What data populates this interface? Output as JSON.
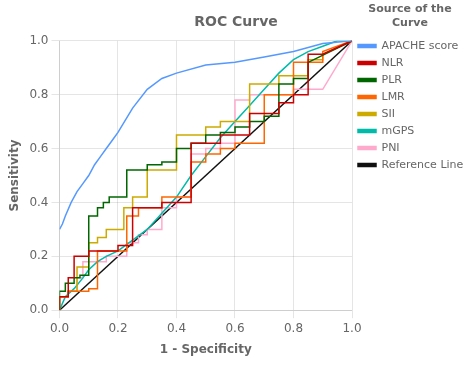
{
  "chart_data": {
    "type": "line",
    "title": "ROC Curve",
    "x_label": "1 - Specificity",
    "y_label": "Sensitivity",
    "legend_title": "Source of the\nCurve",
    "legend": "right",
    "grid": true,
    "xlim": [
      0.0,
      1.0
    ],
    "ylim": [
      0.0,
      1.0
    ],
    "xticks": [
      {
        "value": 0.0,
        "label": "0.0"
      },
      0.2,
      0.4,
      0.6,
      0.8,
      {
        "value": 1.0,
        "label": "1.0"
      }
    ],
    "yticks": [
      {
        "value": 0.0,
        "label": "0.0"
      },
      0.2,
      0.4,
      0.6,
      0.8,
      {
        "value": 1.0,
        "label": "1.0"
      }
    ],
    "series": [
      {
        "name": "APACHE score",
        "color": "#5599ff",
        "x": [
          0.0,
          0.01,
          0.02,
          0.04,
          0.06,
          0.08,
          0.1,
          0.12,
          0.14,
          0.16,
          0.18,
          0.2,
          0.25,
          0.3,
          0.35,
          0.4,
          0.5,
          0.6,
          0.7,
          0.8,
          0.9,
          1.0
        ],
        "values": [
          0.3,
          0.32,
          0.35,
          0.4,
          0.44,
          0.47,
          0.5,
          0.54,
          0.57,
          0.6,
          0.63,
          0.66,
          0.75,
          0.82,
          0.86,
          0.88,
          0.91,
          0.92,
          0.94,
          0.96,
          0.99,
          1.0
        ]
      },
      {
        "name": "NLR",
        "color": "#cc0000",
        "x": [
          0.0,
          0.0,
          0.03,
          0.03,
          0.05,
          0.05,
          0.08,
          0.08,
          0.1,
          0.1,
          0.12,
          0.12,
          0.15,
          0.15,
          0.2,
          0.2,
          0.25,
          0.25,
          0.3,
          0.3,
          0.35,
          0.35,
          0.4,
          0.4,
          0.45,
          0.45,
          0.5,
          0.5,
          0.55,
          0.55,
          0.6,
          0.6,
          0.65,
          0.65,
          0.7,
          0.7,
          0.75,
          0.75,
          0.8,
          0.8,
          0.85,
          0.85,
          0.9,
          0.9,
          1.0
        ],
        "values": [
          0.0,
          0.05,
          0.05,
          0.12,
          0.12,
          0.2,
          0.2,
          0.2,
          0.2,
          0.22,
          0.22,
          0.22,
          0.22,
          0.22,
          0.22,
          0.24,
          0.24,
          0.38,
          0.38,
          0.38,
          0.38,
          0.4,
          0.4,
          0.4,
          0.4,
          0.62,
          0.62,
          0.62,
          0.62,
          0.65,
          0.65,
          0.65,
          0.65,
          0.73,
          0.73,
          0.73,
          0.73,
          0.77,
          0.77,
          0.8,
          0.8,
          0.95,
          0.95,
          0.95,
          1.0
        ]
      },
      {
        "name": "PLR",
        "color": "#006600",
        "x": [
          0.0,
          0.0,
          0.02,
          0.02,
          0.05,
          0.05,
          0.07,
          0.07,
          0.1,
          0.1,
          0.13,
          0.13,
          0.15,
          0.15,
          0.17,
          0.17,
          0.2,
          0.2,
          0.23,
          0.23,
          0.27,
          0.27,
          0.3,
          0.3,
          0.35,
          0.35,
          0.4,
          0.4,
          0.45,
          0.45,
          0.5,
          0.5,
          0.55,
          0.55,
          0.6,
          0.6,
          0.65,
          0.65,
          0.7,
          0.7,
          0.75,
          0.75,
          0.8,
          0.8,
          0.85,
          0.85,
          1.0
        ],
        "values": [
          0.0,
          0.07,
          0.07,
          0.1,
          0.1,
          0.12,
          0.12,
          0.13,
          0.13,
          0.35,
          0.35,
          0.38,
          0.38,
          0.4,
          0.4,
          0.42,
          0.42,
          0.42,
          0.42,
          0.52,
          0.52,
          0.52,
          0.52,
          0.54,
          0.54,
          0.55,
          0.55,
          0.6,
          0.6,
          0.62,
          0.62,
          0.65,
          0.65,
          0.66,
          0.66,
          0.68,
          0.68,
          0.7,
          0.7,
          0.72,
          0.72,
          0.84,
          0.84,
          0.86,
          0.86,
          0.92,
          1.0
        ]
      },
      {
        "name": "LMR",
        "color": "#ff6600",
        "x": [
          0.0,
          0.0,
          0.03,
          0.03,
          0.06,
          0.06,
          0.08,
          0.08,
          0.1,
          0.1,
          0.13,
          0.13,
          0.16,
          0.16,
          0.2,
          0.2,
          0.23,
          0.23,
          0.27,
          0.27,
          0.3,
          0.3,
          0.35,
          0.35,
          0.4,
          0.4,
          0.45,
          0.45,
          0.5,
          0.5,
          0.55,
          0.55,
          0.6,
          0.6,
          0.65,
          0.65,
          0.7,
          0.7,
          0.75,
          0.75,
          0.8,
          0.8,
          0.85,
          0.85,
          0.9,
          0.9,
          1.0
        ],
        "values": [
          0.0,
          0.05,
          0.05,
          0.07,
          0.07,
          0.07,
          0.07,
          0.07,
          0.07,
          0.08,
          0.08,
          0.22,
          0.22,
          0.22,
          0.22,
          0.22,
          0.22,
          0.35,
          0.35,
          0.38,
          0.38,
          0.38,
          0.38,
          0.42,
          0.42,
          0.42,
          0.42,
          0.55,
          0.55,
          0.58,
          0.58,
          0.6,
          0.6,
          0.62,
          0.62,
          0.62,
          0.62,
          0.8,
          0.8,
          0.8,
          0.8,
          0.92,
          0.92,
          0.92,
          0.92,
          0.96,
          1.0
        ]
      },
      {
        "name": "SII",
        "color": "#ccaa00",
        "x": [
          0.0,
          0.0,
          0.03,
          0.03,
          0.06,
          0.06,
          0.08,
          0.08,
          0.1,
          0.1,
          0.13,
          0.13,
          0.16,
          0.16,
          0.18,
          0.18,
          0.22,
          0.22,
          0.25,
          0.25,
          0.28,
          0.28,
          0.3,
          0.3,
          0.35,
          0.35,
          0.4,
          0.4,
          0.45,
          0.45,
          0.5,
          0.5,
          0.55,
          0.55,
          0.6,
          0.6,
          0.65,
          0.65,
          0.7,
          0.7,
          0.75,
          0.75,
          0.8,
          0.8,
          0.85,
          0.85,
          0.9,
          0.9,
          1.0
        ],
        "values": [
          0.0,
          0.05,
          0.05,
          0.07,
          0.07,
          0.16,
          0.16,
          0.16,
          0.16,
          0.25,
          0.25,
          0.27,
          0.27,
          0.3,
          0.3,
          0.3,
          0.3,
          0.38,
          0.38,
          0.42,
          0.42,
          0.42,
          0.42,
          0.52,
          0.52,
          0.52,
          0.52,
          0.65,
          0.65,
          0.65,
          0.65,
          0.68,
          0.68,
          0.7,
          0.7,
          0.7,
          0.7,
          0.84,
          0.84,
          0.84,
          0.84,
          0.87,
          0.87,
          0.87,
          0.87,
          0.93,
          0.93,
          0.95,
          1.0
        ]
      },
      {
        "name": "mGPS",
        "color": "#00bbaa",
        "x": [
          0.0,
          0.02,
          0.05,
          0.08,
          0.1,
          0.13,
          0.16,
          0.2,
          0.25,
          0.3,
          0.35,
          0.4,
          0.45,
          0.5,
          0.55,
          0.6,
          0.65,
          0.7,
          0.75,
          0.8,
          0.85,
          0.9,
          0.95,
          1.0
        ],
        "values": [
          0.0,
          0.05,
          0.08,
          0.12,
          0.15,
          0.18,
          0.2,
          0.22,
          0.26,
          0.3,
          0.36,
          0.42,
          0.5,
          0.57,
          0.64,
          0.7,
          0.76,
          0.82,
          0.88,
          0.93,
          0.96,
          0.98,
          1.0,
          1.0
        ]
      },
      {
        "name": "PNI",
        "color": "#ffaacc",
        "x": [
          0.0,
          0.0,
          0.03,
          0.03,
          0.06,
          0.06,
          0.08,
          0.08,
          0.1,
          0.1,
          0.13,
          0.13,
          0.16,
          0.16,
          0.2,
          0.2,
          0.23,
          0.23,
          0.27,
          0.27,
          0.3,
          0.3,
          0.35,
          0.35,
          0.4,
          0.4,
          0.45,
          0.45,
          0.5,
          0.5,
          0.55,
          0.55,
          0.6,
          0.6,
          0.65,
          0.65,
          0.7,
          0.7,
          0.8,
          0.8,
          0.9,
          0.9,
          1.0
        ],
        "values": [
          0.0,
          0.05,
          0.05,
          0.07,
          0.07,
          0.12,
          0.12,
          0.18,
          0.18,
          0.18,
          0.18,
          0.18,
          0.18,
          0.2,
          0.2,
          0.2,
          0.2,
          0.25,
          0.25,
          0.28,
          0.28,
          0.3,
          0.3,
          0.38,
          0.38,
          0.42,
          0.42,
          0.58,
          0.58,
          0.6,
          0.6,
          0.62,
          0.62,
          0.78,
          0.78,
          0.8,
          0.8,
          0.8,
          0.8,
          0.82,
          0.82,
          0.82,
          1.0
        ]
      },
      {
        "name": "Reference Line",
        "color": "#111111",
        "x": [
          0.0,
          1.0
        ],
        "values": [
          0.0,
          1.0
        ]
      }
    ]
  }
}
